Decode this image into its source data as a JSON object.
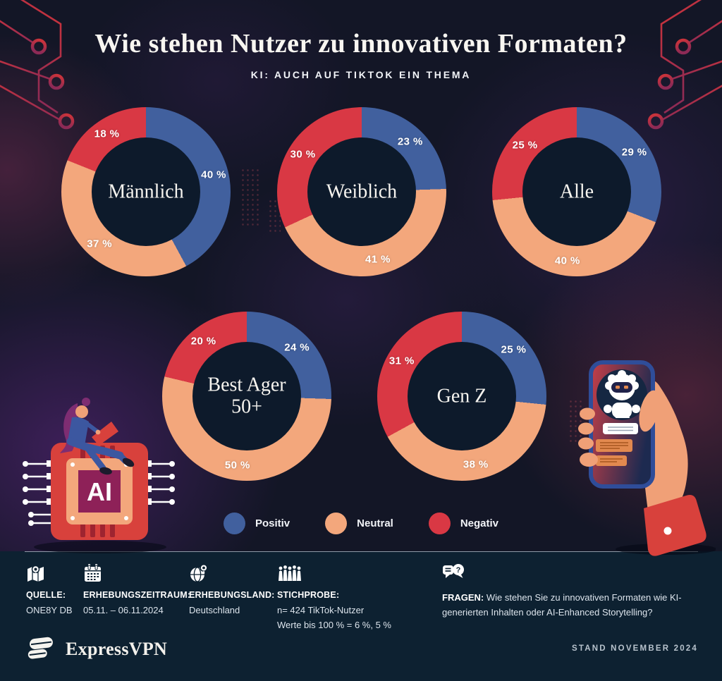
{
  "header": {
    "title": "Wie stehen Nutzer zu innovativen Formaten?",
    "subtitle": "KI: AUCH AUF TIKTOK EIN THEMA"
  },
  "chart_data": {
    "type": "pie",
    "subtype": "donut",
    "unit": "%",
    "value_suffix": " %",
    "categories": [
      "Positiv",
      "Neutral",
      "Negativ"
    ],
    "charts": [
      {
        "name": "Männlich",
        "values": [
          40,
          37,
          18
        ]
      },
      {
        "name": "Weiblich",
        "values": [
          23,
          41,
          30
        ]
      },
      {
        "name": "Alle",
        "values": [
          29,
          40,
          25
        ]
      },
      {
        "name": "Best Ager 50+",
        "values": [
          24,
          50,
          20
        ]
      },
      {
        "name": "Gen Z",
        "values": [
          25,
          38,
          31
        ]
      }
    ],
    "legend": [
      {
        "label": "Positiv",
        "color": "#41609E"
      },
      {
        "label": "Neutral",
        "color": "#F3A77C"
      },
      {
        "label": "Negativ",
        "color": "#D93844"
      }
    ],
    "legend_position": "bottom"
  },
  "illustrations": {
    "ai_chip_label": "AI"
  },
  "footer": {
    "question_glyph": "?",
    "items": [
      {
        "icon": "map-icon",
        "label": "QUELLE:",
        "line1": "ONE8Y DB",
        "line2": ""
      },
      {
        "icon": "calendar-icon",
        "label": "ERHEBUNGSZEITRAUM:",
        "line1": "05.11. – 06.11.2024",
        "line2": ""
      },
      {
        "icon": "globe-pin-icon",
        "label": "ERHEBUNGSLAND:",
        "line1": "Deutschland",
        "line2": ""
      },
      {
        "icon": "people-icon",
        "label": "STICHPROBE:",
        "line1": "n= 424 TikTok-Nutzer",
        "line2": "Werte bis 100 % = 6 %, 5 %"
      },
      {
        "icon": "chat-question-icon",
        "label": "FRAGEN:",
        "line1": "Wie stehen Sie zu innovativen Formaten wie KI-generierten Inhalten oder AI-Enhanced Storytelling?",
        "line2": ""
      }
    ]
  },
  "bottombar": {
    "brand": "ExpressVPN",
    "stand": "STAND NOVEMBER 2024"
  }
}
